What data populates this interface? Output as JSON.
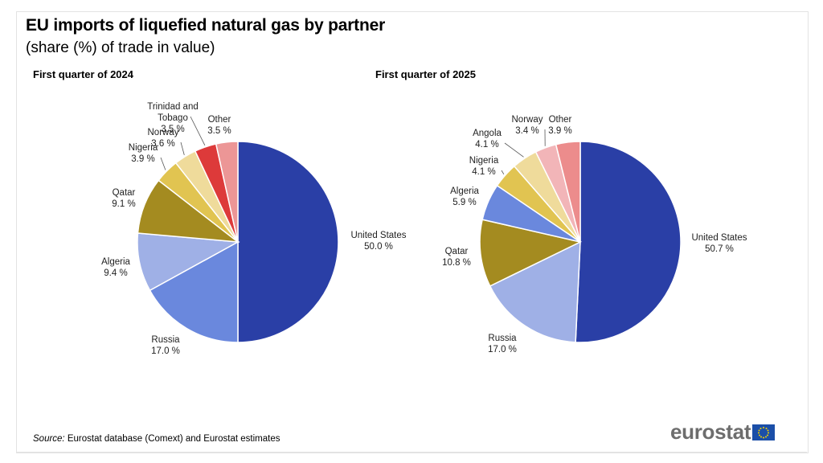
{
  "title": "EU imports of liquefied natural gas by partner",
  "subtitle": "(share (%) of trade in value)",
  "source": {
    "label": "Source:",
    "text": " Eurostat database (Comext) and Eurostat estimates"
  },
  "logo": {
    "text": "eurostat",
    "flag_icon": "eu-flag-icon"
  },
  "chart_data": [
    {
      "type": "pie",
      "title": "First quarter of 2024",
      "slices": [
        {
          "name": "United States",
          "value": 50.0,
          "label": "50.0 %",
          "color": "#2a3fa6"
        },
        {
          "name": "Russia",
          "value": 17.0,
          "label": "17.0 %",
          "color": "#6a88dd"
        },
        {
          "name": "Algeria",
          "value": 9.4,
          "label": "9.4 %",
          "color": "#9fb0e6"
        },
        {
          "name": "Qatar",
          "value": 9.1,
          "label": "9.1 %",
          "color": "#a48b20"
        },
        {
          "name": "Nigeria",
          "value": 3.9,
          "label": "3.9 %",
          "color": "#e1c451"
        },
        {
          "name": "Norway",
          "value": 3.6,
          "label": "3.6 %",
          "color": "#efdb9b"
        },
        {
          "name": "Trinidad and Tobago",
          "value": 3.5,
          "label": "3.5 %",
          "color": "#dd3a3a"
        },
        {
          "name": "Other",
          "value": 3.5,
          "label": "3.5 %",
          "color": "#ec9696"
        }
      ]
    },
    {
      "type": "pie",
      "title": "First quarter of 2025",
      "slices": [
        {
          "name": "United States",
          "value": 50.7,
          "label": "50.7 %",
          "color": "#2a3fa6"
        },
        {
          "name": "Russia",
          "value": 17.0,
          "label": "17.0 %",
          "color": "#9fb0e6"
        },
        {
          "name": "Qatar",
          "value": 10.8,
          "label": "10.8 %",
          "color": "#a48b20"
        },
        {
          "name": "Algeria",
          "value": 5.9,
          "label": "5.9 %",
          "color": "#6a88dd"
        },
        {
          "name": "Nigeria",
          "value": 4.1,
          "label": "4.1 %",
          "color": "#e1c451"
        },
        {
          "name": "Angola",
          "value": 4.1,
          "label": "4.1 %",
          "color": "#efdb9b"
        },
        {
          "name": "Norway",
          "value": 3.4,
          "label": "3.4 %",
          "color": "#f2b5b8"
        },
        {
          "name": "Other",
          "value": 3.9,
          "label": "3.9 %",
          "color": "#ec8c8c"
        }
      ]
    }
  ]
}
